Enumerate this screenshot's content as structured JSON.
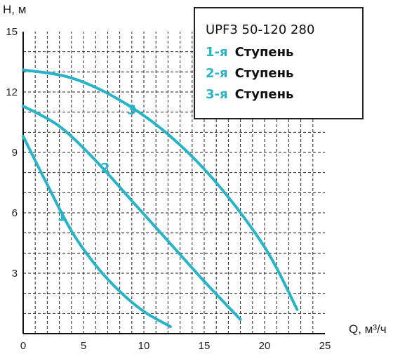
{
  "chart_data": {
    "type": "line",
    "xlabel": "Q, м³/ч",
    "ylabel": "H, м",
    "xlim": [
      0,
      25
    ],
    "ylim": [
      0,
      15
    ],
    "x_ticks": [
      0,
      5,
      10,
      15,
      20,
      25
    ],
    "y_ticks": [
      3,
      6,
      9,
      12,
      15
    ],
    "grid": true,
    "line_color": "#29b3c8",
    "legend": {
      "title": "UPF3 50-120 280",
      "entries": [
        {
          "num": "1-я",
          "word": "Ступень"
        },
        {
          "num": "2-я",
          "word": "Ступень"
        },
        {
          "num": "3-я",
          "word": "Ступень"
        }
      ]
    },
    "series": [
      {
        "label": "1",
        "label_at": [
          3.2,
          5.6
        ],
        "x": [
          0,
          2,
          4,
          6,
          8,
          10,
          12.2
        ],
        "y": [
          9.8,
          7.4,
          5.1,
          3.4,
          2.1,
          1.1,
          0.35
        ]
      },
      {
        "label": "2",
        "label_at": [
          6.8,
          8.0
        ],
        "x": [
          0,
          3,
          6,
          9,
          12,
          15,
          18
        ],
        "y": [
          11.3,
          10.3,
          8.6,
          6.6,
          4.6,
          2.6,
          0.7
        ]
      },
      {
        "label": "3",
        "label_at": [
          9.0,
          10.9
        ],
        "x": [
          0,
          4,
          8,
          12,
          16,
          20,
          22.7
        ],
        "y": [
          13.1,
          12.7,
          11.6,
          9.9,
          7.5,
          4.3,
          1.2
        ]
      }
    ]
  }
}
